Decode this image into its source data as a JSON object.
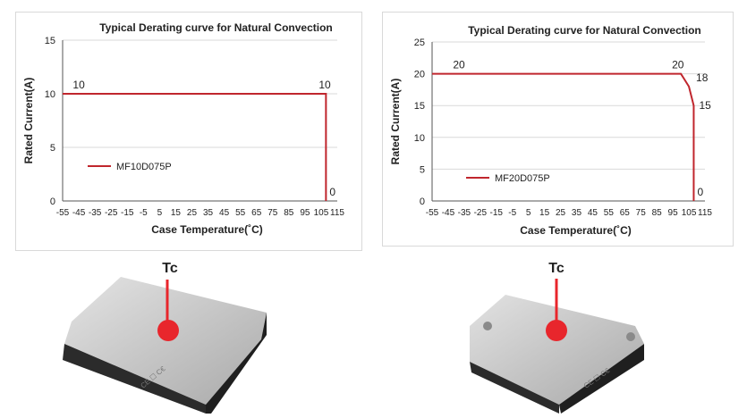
{
  "colors": {
    "series_line": "#c0262d",
    "gridline": "#d9d9d9",
    "axis": "#555555",
    "text": "#222222",
    "marker": "#e8262c",
    "marker_stem": "#e8262c",
    "module_top": "#c9c9c9",
    "module_body": "#2a2a2a"
  },
  "chart_data": [
    {
      "type": "line",
      "title": "Typical Derating curve for Natural Convection",
      "xlabel": "Case Temperature(˚C)",
      "ylabel": "Rated Current(A)",
      "x_ticks": [
        "-55",
        "-45",
        "-35",
        "-25",
        "-15",
        "-5",
        "5",
        "15",
        "25",
        "35",
        "45",
        "55",
        "65",
        "75",
        "85",
        "95",
        "105",
        "115"
      ],
      "y_ticks": [
        "0",
        "5",
        "10",
        "15"
      ],
      "xlim": [
        -55,
        115
      ],
      "ylim": [
        0,
        15
      ],
      "grid": "horizontal",
      "legend_position": "left-middle",
      "series": [
        {
          "name": "MF10D075P",
          "x": [
            -55,
            108,
            108
          ],
          "y": [
            10,
            10,
            0
          ]
        }
      ],
      "annotations": [
        {
          "text": "10",
          "x": -52,
          "y": 10
        },
        {
          "text": "10",
          "x": 108,
          "y": 10
        },
        {
          "text": "0",
          "x": 108,
          "y": 0
        }
      ]
    },
    {
      "type": "line",
      "title": "Typical Derating curve for Natural Convection",
      "xlabel": "Case Temperature(˚C)",
      "ylabel": "Rated Current(A)",
      "x_ticks": [
        "-55",
        "-45",
        "-35",
        "-25",
        "-15",
        "-5",
        "5",
        "15",
        "25",
        "35",
        "45",
        "55",
        "65",
        "75",
        "85",
        "95",
        "105",
        "115"
      ],
      "y_ticks": [
        "0",
        "5",
        "10",
        "15",
        "20",
        "25"
      ],
      "xlim": [
        -55,
        115
      ],
      "ylim": [
        0,
        25
      ],
      "grid": "horizontal",
      "legend_position": "left-middle",
      "series": [
        {
          "name": "MF20D075P",
          "x": [
            -55,
            100,
            105,
            108,
            108
          ],
          "y": [
            20,
            20,
            18,
            15,
            0
          ]
        }
      ],
      "annotations": [
        {
          "text": "20",
          "x": -42,
          "y": 20
        },
        {
          "text": "20",
          "x": 100,
          "y": 20
        },
        {
          "text": "18",
          "x": 105,
          "y": 18
        },
        {
          "text": "15",
          "x": 108,
          "y": 15
        },
        {
          "text": "0",
          "x": 108,
          "y": 0
        }
      ]
    }
  ],
  "photos": {
    "left": {
      "marker_label": "Tc",
      "module": "MF10D075P"
    },
    "right": {
      "marker_label": "Tc",
      "module": "MF20D075P"
    }
  }
}
